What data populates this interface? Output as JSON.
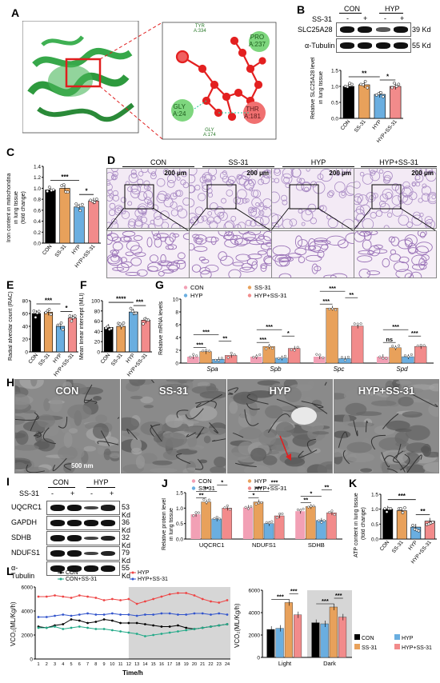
{
  "panels": {
    "A": {
      "label": "A",
      "residues": [
        {
          "id": "tyr",
          "text": "TYR\nA:334"
        },
        {
          "id": "pro",
          "text": "PRO\nA:237"
        },
        {
          "id": "gly24",
          "text": "GLY\nA:24"
        },
        {
          "id": "thr",
          "text": "THR\nA:181"
        },
        {
          "id": "gly174",
          "text": "GLY\nA:174"
        }
      ]
    },
    "B": {
      "label": "B",
      "groups": [
        "CON",
        "HYP"
      ],
      "treatment_label": "SS-31",
      "signs": [
        "-",
        "+",
        "-",
        "+"
      ],
      "bands": [
        {
          "name": "SLC25A28",
          "kd": "39 Kd"
        },
        {
          "name": "α-Tubulin",
          "kd": "55 Kd"
        }
      ],
      "chart": {
        "ylabel1": "Relative SLC25A28 level",
        "ylabel2": "in lung tissue",
        "categories": [
          "CON",
          "SS-31",
          "HYP",
          "HYP+SS-31"
        ],
        "values": [
          1.0,
          1.05,
          0.75,
          1.0
        ],
        "colors": [
          "#000000",
          "#e8a15b",
          "#6aaee0",
          "#f28b8b"
        ],
        "ymax": 1.5,
        "ticks": [
          "0.0",
          "0.5",
          "1.0",
          "1.5"
        ],
        "sig": [
          {
            "text": "**"
          },
          {
            "text": "*"
          }
        ]
      }
    },
    "C": {
      "label": "C",
      "ylabel1": "Iron content in mitochondria",
      "ylabel2": "in lung tissue",
      "ylabel3": "(fold change)",
      "categories": [
        "CON",
        "SS-31",
        "HYP",
        "HYP+SS-31"
      ],
      "values": [
        0.97,
        1.0,
        0.66,
        0.77
      ],
      "colors": [
        "#000000",
        "#e8a15b",
        "#6aaee0",
        "#f28b8b"
      ],
      "ticks": [
        "0.0",
        "0.2",
        "0.4",
        "0.6",
        "0.8",
        "1.0",
        "1.2",
        "1.4"
      ],
      "ymax": 1.4,
      "sig": [
        {
          "text": "***"
        },
        {
          "text": "*"
        }
      ]
    },
    "D": {
      "label": "D",
      "groups": [
        "CON",
        "SS-31",
        "HYP",
        "HYP+SS-31"
      ],
      "scale": "200 μm"
    },
    "E": {
      "label": "E",
      "ylabel": "Radial alveolar count (RAC)",
      "categories": [
        "CON",
        "SS-31",
        "HYP",
        "HYP+SS-31"
      ],
      "values": [
        60,
        62,
        40,
        53
      ],
      "colors": [
        "#000000",
        "#e8a15b",
        "#6aaee0",
        "#f28b8b"
      ],
      "ticks": [
        "0",
        "20",
        "40",
        "60",
        "80"
      ],
      "ymax": 80,
      "sig": [
        {
          "text": "***"
        },
        {
          "text": "*"
        }
      ]
    },
    "F": {
      "label": "F",
      "ylabel": "Mean linear intercept (MLI)",
      "categories": [
        "CON",
        "SS-31",
        "HYP",
        "HYP+SS-31"
      ],
      "values": [
        48,
        50,
        78,
        62
      ],
      "colors": [
        "#000000",
        "#e8a15b",
        "#6aaee0",
        "#f28b8b"
      ],
      "ticks": [
        "0",
        "20",
        "40",
        "60",
        "80",
        "100"
      ],
      "ymax": 100,
      "sig": [
        {
          "text": "****"
        },
        {
          "text": "***"
        }
      ]
    },
    "G": {
      "label": "G",
      "ylabel": "Relative mRNA levels",
      "legend": [
        "CON",
        "SS-31",
        "HYP",
        "HYP+SS-31"
      ],
      "categories": [
        "Spa",
        "Spb",
        "Spc",
        "Spd"
      ],
      "series": [
        {
          "values": [
            1.0,
            1.0,
            1.0,
            1.0
          ]
        },
        {
          "values": [
            1.8,
            2.6,
            8.6,
            2.4
          ]
        },
        {
          "values": [
            0.6,
            0.8,
            0.7,
            1.0
          ]
        },
        {
          "values": [
            1.2,
            2.3,
            5.8,
            2.6
          ]
        }
      ],
      "colors": [
        "#f2a0b5",
        "#e8a15b",
        "#6aaee0",
        "#f28b8b"
      ],
      "ticks": [
        "0",
        "2",
        "4",
        "6",
        "8",
        "10"
      ],
      "ymax": 10,
      "sig": [
        "***",
        "**",
        "***",
        "***",
        "*",
        "***",
        "***",
        "**",
        "***",
        "ns",
        "***",
        "***"
      ]
    },
    "H": {
      "label": "H",
      "groups": [
        "CON",
        "SS-31",
        "HYP",
        "HYP+SS-31"
      ],
      "scale": "500 nm"
    },
    "I": {
      "label": "I",
      "groups": [
        "CON",
        "HYP"
      ],
      "treatment_label": "SS-31",
      "signs": [
        "-",
        "+",
        "-",
        "+"
      ],
      "bands": [
        {
          "name": "UQCRC1",
          "kd": "53 Kd"
        },
        {
          "name": "GAPDH",
          "kd": "36 Kd"
        },
        {
          "name": "SDHB",
          "kd": "32 Kd"
        },
        {
          "name": "NDUFS1",
          "kd": "79 Kd"
        },
        {
          "name": "α-Tubulin",
          "kd": "55 Kd"
        }
      ]
    },
    "J": {
      "label": "J",
      "ylabel1": "Relative protein level",
      "ylabel2": "in lung tissue",
      "legend": [
        "CON",
        "HYP",
        "SS-31",
        "HYP+SS-31"
      ],
      "categories": [
        "UQCRC1",
        "NDUFS1",
        "SDHB"
      ],
      "series": [
        {
          "values": [
            0.8,
            1.02,
            0.9
          ]
        },
        {
          "values": [
            1.2,
            1.2,
            1.05
          ]
        },
        {
          "values": [
            0.65,
            0.5,
            0.6
          ]
        },
        {
          "values": [
            1.0,
            0.75,
            0.85
          ]
        }
      ],
      "colors": [
        "#f2a0b5",
        "#e8a15b",
        "#6aaee0",
        "#f28b8b"
      ],
      "ticks": [
        "0.0",
        "0.5",
        "1.0",
        "1.5"
      ],
      "ymax": 1.5,
      "sig": [
        "**",
        "**",
        "*",
        "*",
        "***",
        "***",
        "**",
        "*",
        "**"
      ]
    },
    "K": {
      "label": "K",
      "ylabel1": "ATP content in lung tissue",
      "ylabel2": "(fold change)",
      "categories": [
        "CON",
        "SS-31",
        "HYP",
        "HYP+SS-31"
      ],
      "values": [
        1.0,
        0.95,
        0.4,
        0.6
      ],
      "colors": [
        "#000000",
        "#e8a15b",
        "#6aaee0",
        "#f28b8b"
      ],
      "ticks": [
        "0.0",
        "0.5",
        "1.0",
        "1.5"
      ],
      "ymax": 1.5,
      "sig": [
        {
          "text": "***"
        },
        {
          "text": "**"
        }
      ]
    },
    "L": {
      "label": "L",
      "line": {
        "ylabel": "VCO₂(ML/Kg/h)",
        "xlabel": "Time/h",
        "legend": [
          "CON",
          "HYP",
          "CON+SS-31",
          "HYP+SS-31"
        ],
        "ticks": [
          "0",
          "2000",
          "4000",
          "6000"
        ],
        "ymax": 6000,
        "x_ticks": [
          "1",
          "2",
          "3",
          "4",
          "5",
          "6",
          "7",
          "8",
          "9",
          "10",
          "11",
          "12",
          "13",
          "14",
          "15",
          "16",
          "17",
          "18",
          "19",
          "20",
          "21",
          "22",
          "23",
          "24"
        ],
        "series": [
          {
            "color": "#000000",
            "values": [
              2700,
              2600,
              2800,
              2900,
              3300,
              3200,
              3000,
              3100,
              3300,
              3200,
              3000,
              3000,
              3000,
              2900,
              2800,
              2700,
              2700,
              2800,
              2600,
              2500,
              2600,
              2700,
              2800,
              2900
            ]
          },
          {
            "color": "#ee4444",
            "values": [
              5200,
              5200,
              5300,
              5200,
              5100,
              5300,
              5200,
              5100,
              4900,
              5000,
              4900,
              5000,
              4600,
              4800,
              5000,
              5200,
              5400,
              5500,
              5500,
              5300,
              5000,
              4800,
              4700,
              4900
            ]
          },
          {
            "color": "#22aa88",
            "values": [
              2600,
              2600,
              2700,
              2500,
              2600,
              2700,
              2600,
              2500,
              2500,
              2400,
              2300,
              2200,
              2100,
              1900,
              2000,
              2100,
              2200,
              2300,
              2400,
              2500,
              2600,
              2700,
              2800,
              2900
            ]
          },
          {
            "color": "#3355cc",
            "values": [
              3500,
              3500,
              3600,
              3700,
              3600,
              3700,
              3800,
              3700,
              3700,
              3800,
              3700,
              3700,
              3600,
              3700,
              3700,
              3800,
              3800,
              3700,
              3700,
              3800,
              3800,
              3700,
              3800,
              3700
            ]
          }
        ]
      },
      "bar": {
        "ylabel": "VCO₂(ML/Kg/h)",
        "ticks": [
          "0",
          "2000",
          "4000",
          "6000"
        ],
        "ymax": 6000,
        "categories": [
          "Light",
          "Dark"
        ],
        "legend": [
          "CON",
          "HYP",
          "SS-31",
          "HYP+SS-31"
        ],
        "colors": [
          "#000000",
          "#6aaee0",
          "#e8a15b",
          "#f28b8b"
        ],
        "series": [
          {
            "values": [
              2500,
              3100
            ]
          },
          {
            "values": [
              2600,
              3000
            ]
          },
          {
            "values": [
              4900,
              4500
            ]
          },
          {
            "values": [
              3800,
              3600
            ]
          }
        ],
        "sig": [
          "***",
          "***",
          "***",
          "***"
        ]
      }
    }
  }
}
